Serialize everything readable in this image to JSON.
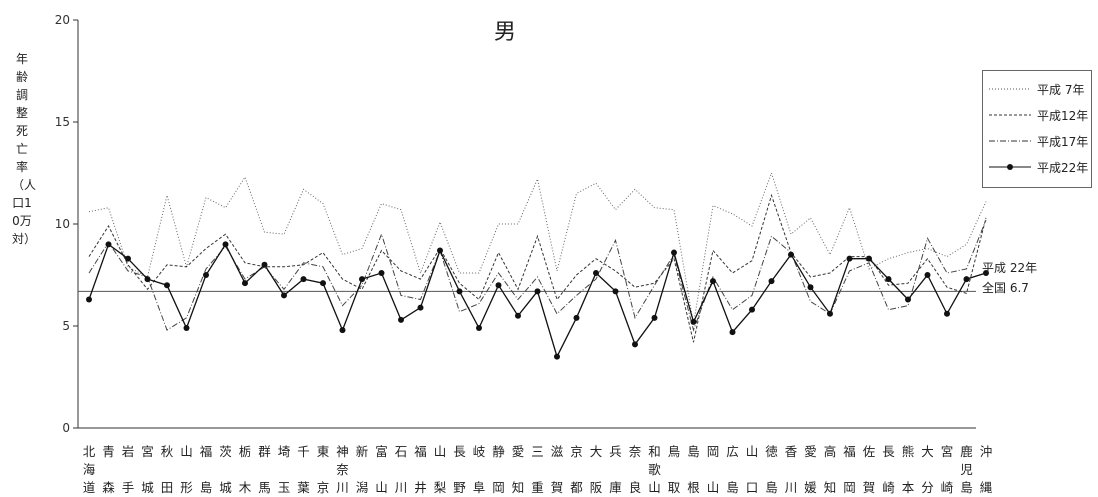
{
  "chart_data": {
    "type": "line",
    "title": "男",
    "ylabel": "年齢調整死亡率（人口10万対）",
    "ylim": [
      0,
      20
    ],
    "yticks": [
      0,
      5,
      10,
      15,
      20
    ],
    "categories": [
      "北海道",
      "青森",
      "岩手",
      "宮城",
      "秋田",
      "山形",
      "福島",
      "茨城",
      "栃木",
      "群馬",
      "埼玉",
      "千葉",
      "東京",
      "神奈川",
      "新潟",
      "富山",
      "石川",
      "福井",
      "山梨",
      "長野",
      "岐阜",
      "静岡",
      "愛知",
      "三重",
      "滋賀",
      "京都",
      "大阪",
      "兵庫",
      "奈良",
      "和歌山",
      "鳥取",
      "島根",
      "岡山",
      "広島",
      "山口",
      "徳島",
      "香川",
      "愛媛",
      "高知",
      "福岡",
      "佐賀",
      "長崎",
      "熊本",
      "大分",
      "宮崎",
      "鹿児島",
      "沖縄"
    ],
    "series": [
      {
        "name": "平成 7年",
        "style": "dotted",
        "values": [
          10.6,
          10.8,
          7.9,
          7.4,
          11.4,
          7.9,
          11.3,
          10.8,
          12.3,
          9.6,
          9.5,
          11.7,
          11.0,
          8.5,
          8.8,
          11.0,
          10.7,
          7.6,
          10.1,
          7.6,
          7.6,
          10.0,
          10.0,
          12.2,
          7.7,
          11.5,
          12.0,
          10.7,
          11.7,
          10.8,
          10.7,
          5.1,
          10.9,
          10.5,
          9.9,
          12.5,
          9.5,
          10.3,
          8.5,
          10.8,
          7.8,
          8.3,
          8.6,
          8.8,
          8.4,
          9.0,
          11.1
        ]
      },
      {
        "name": "平成12年",
        "style": "dashed",
        "values": [
          8.4,
          9.9,
          8.0,
          6.8,
          8.0,
          7.9,
          8.8,
          9.5,
          8.1,
          7.9,
          7.9,
          8.0,
          8.6,
          7.3,
          6.8,
          8.7,
          7.7,
          7.3,
          8.8,
          7.1,
          6.3,
          8.6,
          6.8,
          9.4,
          6.3,
          7.5,
          8.3,
          7.7,
          6.9,
          7.1,
          8.3,
          4.2,
          8.7,
          7.6,
          8.2,
          11.4,
          8.6,
          7.4,
          7.6,
          8.4,
          8.4,
          7.0,
          7.1,
          8.3,
          6.9,
          6.6,
          10.3
        ]
      },
      {
        "name": "平成17年",
        "style": "dashdot",
        "values": [
          7.6,
          9.1,
          7.7,
          7.4,
          4.8,
          5.4,
          7.8,
          8.9,
          7.3,
          7.9,
          6.8,
          8.1,
          7.9,
          6.0,
          7.0,
          9.5,
          6.5,
          6.3,
          8.7,
          5.7,
          6.1,
          7.6,
          6.3,
          7.4,
          5.6,
          6.5,
          7.3,
          9.2,
          5.4,
          7.0,
          8.5,
          4.8,
          7.4,
          5.8,
          6.5,
          9.4,
          8.6,
          6.2,
          5.6,
          7.7,
          8.1,
          5.8,
          6.0,
          9.3,
          7.6,
          7.8,
          10.2
        ]
      },
      {
        "name": "平成22年",
        "style": "solid-marker",
        "values": [
          6.3,
          9.0,
          8.3,
          7.3,
          7.0,
          4.9,
          7.5,
          9.0,
          7.1,
          8.0,
          6.5,
          7.3,
          7.1,
          4.8,
          7.3,
          7.6,
          5.3,
          5.9,
          8.7,
          6.7,
          4.9,
          7.0,
          5.5,
          6.7,
          3.5,
          5.4,
          7.6,
          6.7,
          4.1,
          5.4,
          8.6,
          5.2,
          7.2,
          4.7,
          5.8,
          7.2,
          8.5,
          6.9,
          5.6,
          8.3,
          8.3,
          7.3,
          6.3,
          7.5,
          5.6,
          7.3,
          7.6
        ]
      }
    ],
    "reference_line": {
      "value": 6.7,
      "label_line1": "平成 22年",
      "label_line2": "全国 6.7"
    },
    "legend_position": "right",
    "grid": false
  }
}
